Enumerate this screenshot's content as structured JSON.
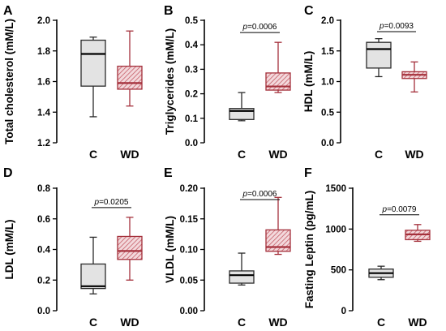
{
  "colors": {
    "control_fill": "#e3e3e3",
    "control_stroke": "#2b2b2b",
    "wd_fill": "#f3d9dc",
    "wd_hatch": "#c45c66",
    "wd_stroke": "#a4303b",
    "median": "#000000"
  },
  "chart_data": [
    {
      "type": "box",
      "panel": "A",
      "ylabel": "Total cholesterol (mM/L)",
      "ylim": [
        1.2,
        2.0
      ],
      "yticks": [
        1.2,
        1.4,
        1.6,
        1.8,
        2.0
      ],
      "ytick_labels": [
        "1.2",
        "1.4",
        "1.6",
        "1.8",
        "2.0"
      ],
      "categories": [
        "C",
        "WD"
      ],
      "boxes": [
        {
          "name": "C",
          "min": 1.37,
          "q1": 1.57,
          "median": 1.78,
          "q3": 1.87,
          "max": 1.89
        },
        {
          "name": "WD",
          "min": 1.44,
          "q1": 1.55,
          "median": 1.59,
          "q3": 1.7,
          "max": 1.93
        }
      ],
      "pvalue": ""
    },
    {
      "type": "box",
      "panel": "B",
      "ylabel": "Triglycerides (mM/L)",
      "ylim": [
        0.0,
        0.5
      ],
      "yticks": [
        0.0,
        0.1,
        0.2,
        0.3,
        0.4,
        0.5
      ],
      "ytick_labels": [
        "0.0",
        "0.1",
        "0.2",
        "0.3",
        "0.4",
        "0.5"
      ],
      "categories": [
        "C",
        "WD"
      ],
      "boxes": [
        {
          "name": "C",
          "min": 0.09,
          "q1": 0.095,
          "median": 0.13,
          "q3": 0.14,
          "max": 0.205
        },
        {
          "name": "WD",
          "min": 0.205,
          "q1": 0.215,
          "median": 0.23,
          "q3": 0.285,
          "max": 0.41
        }
      ],
      "pvalue": "=0.0006"
    },
    {
      "type": "box",
      "panel": "C",
      "ylabel": "HDL (mM/L)",
      "ylim": [
        0.0,
        2.0
      ],
      "yticks": [
        0.0,
        0.5,
        1.0,
        1.5,
        2.0
      ],
      "ytick_labels": [
        "0.0",
        "0.5",
        "1.0",
        "1.5",
        "2.0"
      ],
      "categories": [
        "C",
        "WD"
      ],
      "boxes": [
        {
          "name": "C",
          "min": 1.08,
          "q1": 1.22,
          "median": 1.53,
          "q3": 1.64,
          "max": 1.7
        },
        {
          "name": "WD",
          "min": 0.83,
          "q1": 1.05,
          "median": 1.11,
          "q3": 1.16,
          "max": 1.32
        }
      ],
      "pvalue": "=0.0093"
    },
    {
      "type": "box",
      "panel": "D",
      "ylabel": "LDL (mM/L)",
      "ylim": [
        0.0,
        0.8
      ],
      "yticks": [
        0.0,
        0.2,
        0.4,
        0.6,
        0.8
      ],
      "ytick_labels": [
        "0.0",
        "0.2",
        "0.4",
        "0.6",
        "0.8"
      ],
      "categories": [
        "C",
        "WD"
      ],
      "boxes": [
        {
          "name": "C",
          "min": 0.11,
          "q1": 0.145,
          "median": 0.16,
          "q3": 0.305,
          "max": 0.48
        },
        {
          "name": "WD",
          "min": 0.2,
          "q1": 0.335,
          "median": 0.39,
          "q3": 0.485,
          "max": 0.61
        }
      ],
      "pvalue": "=0.0205"
    },
    {
      "type": "box",
      "panel": "E",
      "ylabel": "VLDL (mM/L)",
      "ylim": [
        0.0,
        0.2
      ],
      "yticks": [
        0.0,
        0.05,
        0.1,
        0.15,
        0.2
      ],
      "ytick_labels": [
        "0.00",
        "0.05",
        "0.10",
        "0.15",
        "0.20"
      ],
      "categories": [
        "C",
        "WD"
      ],
      "boxes": [
        {
          "name": "C",
          "min": 0.042,
          "q1": 0.045,
          "median": 0.058,
          "q3": 0.065,
          "max": 0.094
        },
        {
          "name": "WD",
          "min": 0.092,
          "q1": 0.097,
          "median": 0.104,
          "q3": 0.132,
          "max": 0.185
        }
      ],
      "pvalue": "=0.0006"
    },
    {
      "type": "box",
      "panel": "F",
      "ylabel": "Fasting Leptin (pg/mL)",
      "ylim": [
        0,
        1500
      ],
      "yticks": [
        0,
        500,
        1000,
        1500
      ],
      "ytick_labels": [
        "0",
        "500",
        "1000",
        "1500"
      ],
      "categories": [
        "C",
        "WD"
      ],
      "boxes": [
        {
          "name": "C",
          "min": 380,
          "q1": 410,
          "median": 460,
          "q3": 510,
          "max": 545
        },
        {
          "name": "WD",
          "min": 850,
          "q1": 870,
          "median": 935,
          "q3": 985,
          "max": 1055
        }
      ],
      "pvalue": "=0.0079"
    }
  ]
}
